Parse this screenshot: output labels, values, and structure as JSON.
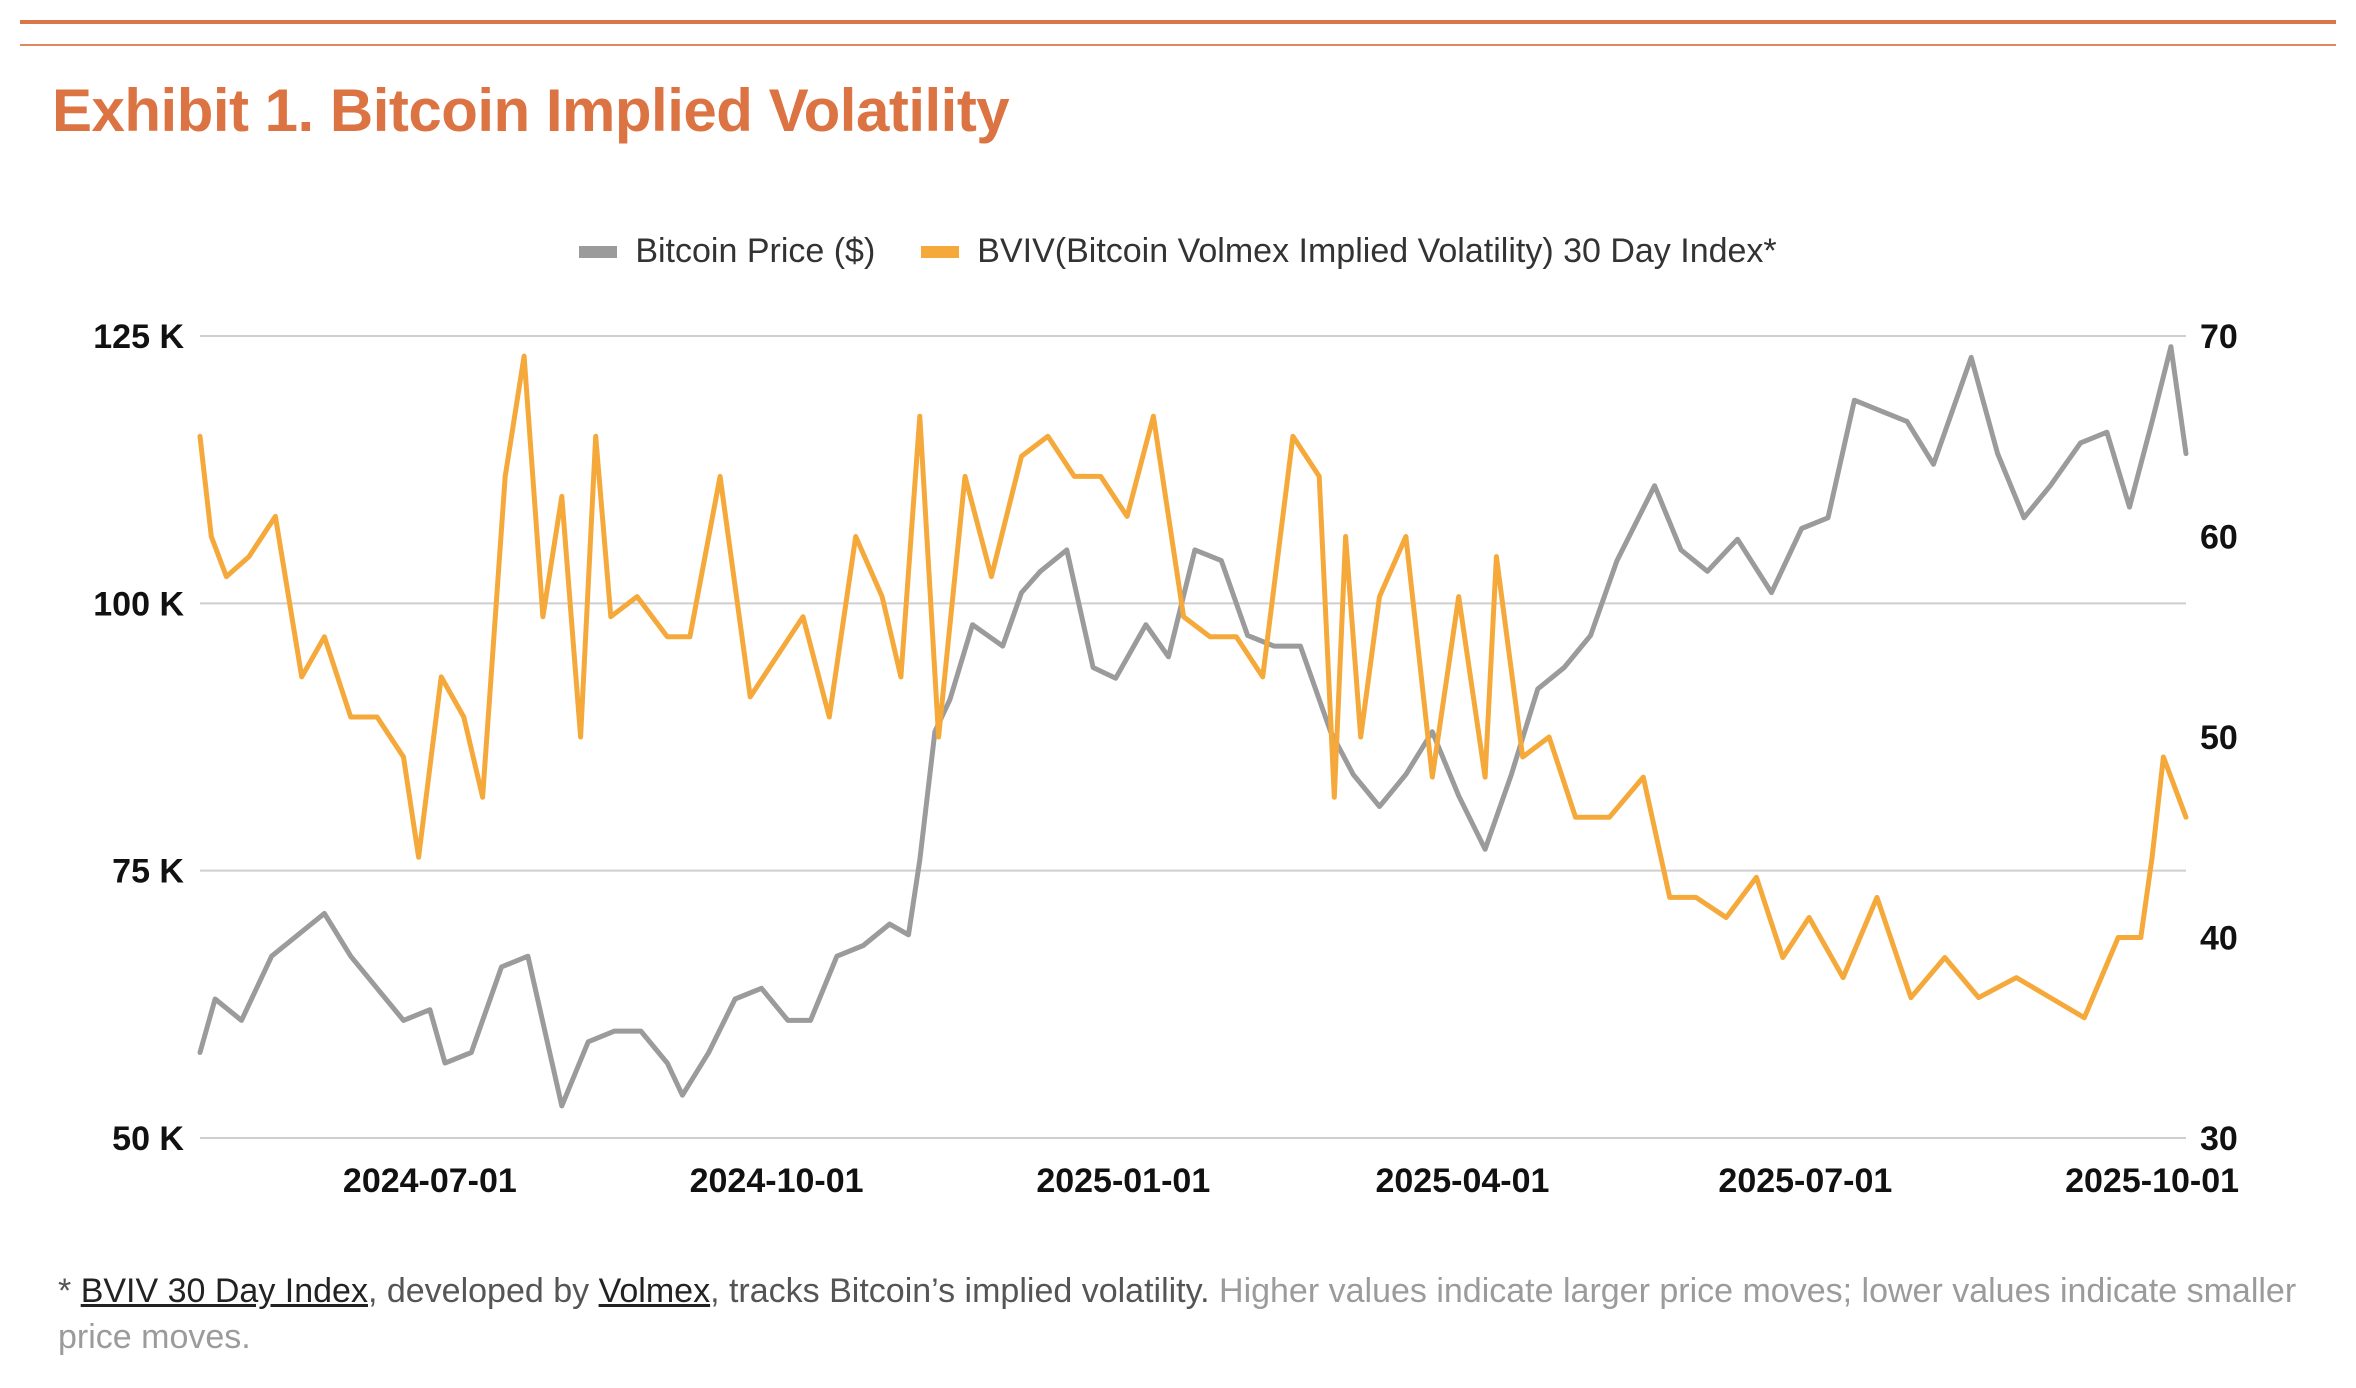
{
  "header": {
    "title": "Exhibit 1. Bitcoin Implied Volatility"
  },
  "legend": {
    "price_label": "Bitcoin Price ($)",
    "bviv_label": "BVIV(Bitcoin Volmex Implied Volatility) 30 Day Index*"
  },
  "footnote": {
    "asterisk": "* ",
    "link1": "BVIV 30 Day Index",
    "text1": ", developed by ",
    "link2": "Volmex",
    "text2": ", tracks Bitcoin’s implied volatility.",
    "text3": " Higher values indicate larger price moves; lower values indicate smaller price moves."
  },
  "colors": {
    "accent": "#db7342",
    "price_series": "#9b9b9b",
    "bviv_series": "#f5a93a",
    "gridline": "#cfcfcf"
  },
  "chart_data": {
    "type": "line",
    "title": "",
    "xlabel": "",
    "ylabel_left": "",
    "ylabel_right": "",
    "x_ticks": [
      "2024-07-01",
      "2024-10-01",
      "2025-01-01",
      "2025-04-01",
      "2025-07-01",
      "2025-10-01"
    ],
    "x_range": [
      "2024-05-01",
      "2025-10-10"
    ],
    "y_left": {
      "range": [
        50000,
        125000
      ],
      "ticks": [
        50000,
        75000,
        100000,
        125000
      ],
      "tick_labels": [
        "50 K",
        "75 K",
        "100 K",
        "125 K"
      ]
    },
    "y_right": {
      "range": [
        30,
        70
      ],
      "ticks": [
        30,
        40,
        50,
        60,
        70
      ],
      "tick_labels": [
        "30",
        "40",
        "50",
        "60",
        "70"
      ]
    },
    "grid": "horizontal",
    "legend_position": "top-center",
    "series": [
      {
        "name": "Bitcoin Price ($)",
        "axis": "left",
        "color": "#9b9b9b",
        "x": [
          "2024-05-01",
          "2024-05-05",
          "2024-05-12",
          "2024-05-20",
          "2024-05-27",
          "2024-06-03",
          "2024-06-10",
          "2024-06-17",
          "2024-06-24",
          "2024-07-01",
          "2024-07-05",
          "2024-07-12",
          "2024-07-20",
          "2024-07-27",
          "2024-08-05",
          "2024-08-12",
          "2024-08-19",
          "2024-08-26",
          "2024-09-02",
          "2024-09-06",
          "2024-09-13",
          "2024-09-20",
          "2024-09-27",
          "2024-10-04",
          "2024-10-10",
          "2024-10-17",
          "2024-10-24",
          "2024-10-31",
          "2024-11-05",
          "2024-11-08",
          "2024-11-12",
          "2024-11-16",
          "2024-11-22",
          "2024-11-30",
          "2024-12-05",
          "2024-12-10",
          "2024-12-17",
          "2024-12-24",
          "2024-12-30",
          "2025-01-07",
          "2025-01-13",
          "2025-01-20",
          "2025-01-27",
          "2025-02-03",
          "2025-02-10",
          "2025-02-17",
          "2025-02-25",
          "2025-03-03",
          "2025-03-10",
          "2025-03-17",
          "2025-03-24",
          "2025-03-31",
          "2025-04-07",
          "2025-04-14",
          "2025-04-21",
          "2025-04-28",
          "2025-05-05",
          "2025-05-12",
          "2025-05-22",
          "2025-05-29",
          "2025-06-05",
          "2025-06-13",
          "2025-06-22",
          "2025-06-30",
          "2025-07-07",
          "2025-07-14",
          "2025-07-21",
          "2025-07-28",
          "2025-08-04",
          "2025-08-14",
          "2025-08-21",
          "2025-08-28",
          "2025-09-04",
          "2025-09-12",
          "2025-09-19",
          "2025-09-25",
          "2025-10-01",
          "2025-10-06",
          "2025-10-10"
        ],
        "y": [
          58000,
          63000,
          61000,
          67000,
          69000,
          71000,
          67000,
          64000,
          61000,
          62000,
          57000,
          58000,
          66000,
          67000,
          53000,
          59000,
          60000,
          60000,
          57000,
          54000,
          58000,
          63000,
          64000,
          61000,
          61000,
          67000,
          68000,
          70000,
          69000,
          76000,
          88000,
          91000,
          98000,
          96000,
          101000,
          103000,
          105000,
          94000,
          93000,
          98000,
          95000,
          105000,
          104000,
          97000,
          96000,
          96000,
          88000,
          84000,
          81000,
          84000,
          88000,
          82000,
          77000,
          84000,
          92000,
          94000,
          97000,
          104000,
          111000,
          105000,
          103000,
          106000,
          101000,
          107000,
          108000,
          119000,
          118000,
          117000,
          113000,
          123000,
          114000,
          108000,
          111000,
          115000,
          116000,
          109000,
          117000,
          124000,
          114000
        ]
      },
      {
        "name": "BVIV(Bitcoin Volmex Implied Volatility) 30 Day Index*",
        "axis": "right",
        "color": "#f5a93a",
        "x": [
          "2024-05-01",
          "2024-05-04",
          "2024-05-08",
          "2024-05-14",
          "2024-05-21",
          "2024-05-28",
          "2024-06-03",
          "2024-06-10",
          "2024-06-17",
          "2024-06-24",
          "2024-06-28",
          "2024-07-04",
          "2024-07-10",
          "2024-07-15",
          "2024-07-21",
          "2024-07-26",
          "2024-07-31",
          "2024-08-05",
          "2024-08-10",
          "2024-08-14",
          "2024-08-18",
          "2024-08-25",
          "2024-09-02",
          "2024-09-08",
          "2024-09-16",
          "2024-09-24",
          "2024-10-01",
          "2024-10-08",
          "2024-10-15",
          "2024-10-22",
          "2024-10-29",
          "2024-11-03",
          "2024-11-08",
          "2024-11-13",
          "2024-11-20",
          "2024-11-27",
          "2024-12-05",
          "2024-12-12",
          "2024-12-19",
          "2024-12-26",
          "2025-01-02",
          "2025-01-09",
          "2025-01-17",
          "2025-01-24",
          "2025-01-31",
          "2025-02-07",
          "2025-02-15",
          "2025-02-22",
          "2025-02-26",
          "2025-03-01",
          "2025-03-05",
          "2025-03-10",
          "2025-03-17",
          "2025-03-24",
          "2025-03-31",
          "2025-04-07",
          "2025-04-10",
          "2025-04-17",
          "2025-04-24",
          "2025-05-01",
          "2025-05-10",
          "2025-05-19",
          "2025-05-26",
          "2025-06-02",
          "2025-06-10",
          "2025-06-18",
          "2025-06-25",
          "2025-07-02",
          "2025-07-11",
          "2025-07-20",
          "2025-07-29",
          "2025-08-07",
          "2025-08-16",
          "2025-08-26",
          "2025-09-04",
          "2025-09-13",
          "2025-09-22",
          "2025-09-28",
          "2025-10-01",
          "2025-10-04",
          "2025-10-08",
          "2025-10-10"
        ],
        "y": [
          65,
          60,
          58,
          59,
          61,
          53,
          55,
          51,
          51,
          49,
          44,
          53,
          51,
          47,
          63,
          69,
          56,
          62,
          50,
          65,
          56,
          57,
          55,
          55,
          63,
          52,
          54,
          56,
          51,
          60,
          57,
          53,
          66,
          50,
          63,
          58,
          64,
          65,
          63,
          63,
          61,
          66,
          56,
          55,
          55,
          53,
          65,
          63,
          47,
          60,
          50,
          57,
          60,
          48,
          57,
          48,
          59,
          49,
          50,
          46,
          46,
          48,
          42,
          42,
          41,
          43,
          39,
          41,
          38,
          42,
          37,
          39,
          37,
          38,
          37,
          36,
          40,
          40,
          44,
          49,
          47,
          46
        ]
      }
    ]
  }
}
